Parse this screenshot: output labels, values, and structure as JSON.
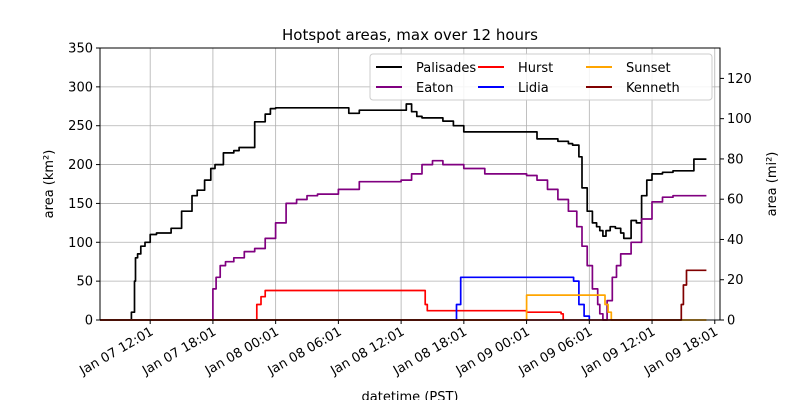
{
  "chart_data": {
    "type": "line",
    "title": "Hotspot areas, max over 12 hours",
    "xlabel": "datetime (PST)",
    "ylabel_left": "area (km²)",
    "ylabel_right": "area (mi²)",
    "x_ticks": [
      "Jan 07 12:01",
      "Jan 07 18:01",
      "Jan 08 00:01",
      "Jan 08 06:01",
      "Jan 08 12:01",
      "Jan 08 18:01",
      "Jan 09 00:01",
      "Jan 09 06:01",
      "Jan 09 12:01",
      "Jan 09 18:01"
    ],
    "xlim_hours_from_jan07_0001": [
      7.2,
      66.5
    ],
    "ylim_left": [
      0,
      350
    ],
    "y_ticks_left": [
      0,
      50,
      100,
      150,
      200,
      250,
      300,
      350
    ],
    "ylim_right": [
      0,
      135.1
    ],
    "y_ticks_right": [
      0,
      20,
      40,
      60,
      80,
      100,
      120
    ],
    "grid": true,
    "legend_position": "top-right",
    "series": [
      {
        "name": "Palisades",
        "color": "#000000",
        "x": [
          10.0,
          10.2,
          10.5,
          10.6,
          10.8,
          11.1,
          11.5,
          12.0,
          12.6,
          14.0,
          15.0,
          16.0,
          16.5,
          17.2,
          17.8,
          18.2,
          19.0,
          20.0,
          20.5,
          22.0,
          23.0,
          23.5,
          24.0,
          24.3,
          24.7,
          30.0,
          31.0,
          32.0,
          36.0,
          36.5,
          37.0,
          37.5,
          38.0,
          40.0,
          41.0,
          42.0,
          48.0,
          49.0,
          51.0,
          52.0,
          52.4,
          53.0,
          53.3,
          53.8,
          54.3,
          54.7,
          55.0,
          55.3,
          55.6,
          56.0,
          56.5,
          57.0,
          57.3,
          58.0,
          58.5,
          59.0,
          59.5,
          60.0,
          61.0,
          62.0,
          63.0,
          64.0,
          65.2
        ],
        "y": [
          0,
          10,
          50,
          80,
          85,
          95,
          100,
          110,
          112,
          118,
          140,
          160,
          167,
          180,
          195,
          200,
          215,
          218,
          222,
          255,
          265,
          272,
          273,
          273,
          273,
          273,
          266,
          270,
          270,
          278,
          268,
          262,
          260,
          256,
          250,
          242,
          242,
          233,
          230,
          227,
          225,
          210,
          170,
          140,
          125,
          120,
          115,
          108,
          115,
          120,
          118,
          112,
          105,
          128,
          125,
          160,
          180,
          188,
          190,
          192,
          192,
          207,
          207
        ]
      },
      {
        "name": "Eaton",
        "color": "#800080",
        "x": [
          7.2,
          17.9,
          18.0,
          18.3,
          18.7,
          19.2,
          20.0,
          21.0,
          22.0,
          23.0,
          24.0,
          25.0,
          26.0,
          27.0,
          28.0,
          30.0,
          32.0,
          36.0,
          37.0,
          38.0,
          39.0,
          40.0,
          42.0,
          44.0,
          48.0,
          49.0,
          50.0,
          51.0,
          52.0,
          52.8,
          53.3,
          53.8,
          54.3,
          54.8,
          55.0,
          55.3,
          55.7,
          56.2,
          56.6,
          57.0,
          58.0,
          59.0,
          60.0,
          61.0,
          62.0,
          65.2
        ],
        "y": [
          0,
          0,
          40,
          55,
          70,
          75,
          80,
          88,
          92,
          105,
          125,
          150,
          155,
          160,
          162,
          168,
          178,
          180,
          188,
          200,
          205,
          200,
          195,
          188,
          186,
          180,
          168,
          155,
          140,
          120,
          95,
          70,
          40,
          20,
          8,
          0,
          25,
          55,
          70,
          85,
          100,
          130,
          152,
          158,
          160,
          160
        ]
      },
      {
        "name": "Hurst",
        "color": "#ff0000",
        "x": [
          7.2,
          22.0,
          22.2,
          22.6,
          23.0,
          38.0,
          38.3,
          38.5,
          40.0,
          48.0,
          48.5,
          51.3,
          51.5
        ],
        "y": [
          0,
          0,
          20,
          30,
          38,
          38,
          20,
          12,
          12,
          10,
          10,
          8,
          0
        ]
      },
      {
        "name": "Lidia",
        "color": "#0000ff",
        "x": [
          7.2,
          41.0,
          41.3,
          41.7,
          52.0,
          52.5,
          53.0,
          53.5,
          54.0
        ],
        "y": [
          0,
          0,
          20,
          55,
          55,
          50,
          20,
          5,
          0
        ]
      },
      {
        "name": "Sunset",
        "color": "#ffa500",
        "x": [
          7.2,
          47.9,
          48.0,
          55.2,
          55.5,
          55.8,
          56.1,
          65.2
        ],
        "y": [
          0,
          0,
          32,
          32,
          20,
          10,
          0,
          0
        ]
      },
      {
        "name": "Kenneth",
        "color": "#800000",
        "x": [
          7.2,
          62.6,
          62.8,
          63.0,
          63.3,
          65.2
        ],
        "y": [
          0,
          0,
          20,
          45,
          64,
          64
        ]
      }
    ]
  }
}
